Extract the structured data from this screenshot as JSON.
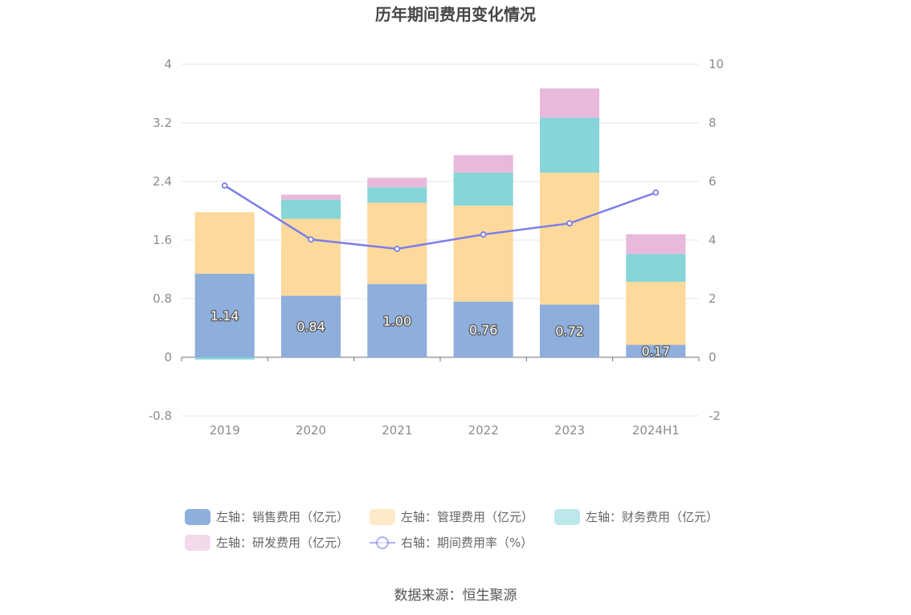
{
  "chart_data": {
    "type": "bar",
    "title": "历年期间费用变化情况",
    "categories": [
      "2019",
      "2020",
      "2021",
      "2022",
      "2023",
      "2024H1"
    ],
    "stacked": true,
    "series": [
      {
        "name": "左轴：销售费用（亿元）",
        "axis": "left",
        "type": "bar",
        "color": "#8eaedb",
        "values": [
          1.14,
          0.84,
          1.0,
          0.76,
          0.72,
          0.17
        ],
        "labels": [
          "1.14",
          "0.84",
          "1.00",
          "0.76",
          "0.72",
          "0.17"
        ]
      },
      {
        "name": "左轴：管理费用（亿元）",
        "axis": "left",
        "type": "bar",
        "color": "#fdd99b",
        "values": [
          0.84,
          1.05,
          1.11,
          1.31,
          1.8,
          0.86
        ]
      },
      {
        "name": "左轴：财务费用（亿元）",
        "axis": "left",
        "type": "bar",
        "color": "#85d5d9",
        "values": [
          -0.03,
          0.26,
          0.21,
          0.45,
          0.75,
          0.38
        ]
      },
      {
        "name": "左轴：研发费用（亿元）",
        "axis": "left",
        "type": "bar",
        "color": "#e8b9da",
        "values": [
          0.0,
          0.07,
          0.13,
          0.24,
          0.4,
          0.27
        ]
      },
      {
        "name": "右轴：期间费用率（%）",
        "axis": "right",
        "type": "line",
        "color": "#7b7ee8",
        "values": [
          5.86,
          4.02,
          3.7,
          4.19,
          4.57,
          5.62
        ]
      }
    ],
    "left_axis": {
      "ylim": [
        -0.8,
        4
      ],
      "ticks": [
        "4",
        "3.2",
        "2.4",
        "1.6",
        "0.8",
        "0",
        "-0.8"
      ]
    },
    "right_axis": {
      "ylim": [
        -2,
        10
      ],
      "ticks": [
        "10",
        "8",
        "6",
        "4",
        "2",
        "0",
        "-2"
      ]
    },
    "grid": true,
    "legend_position": "bottom"
  },
  "source_text": "数据来源：恒生聚源"
}
